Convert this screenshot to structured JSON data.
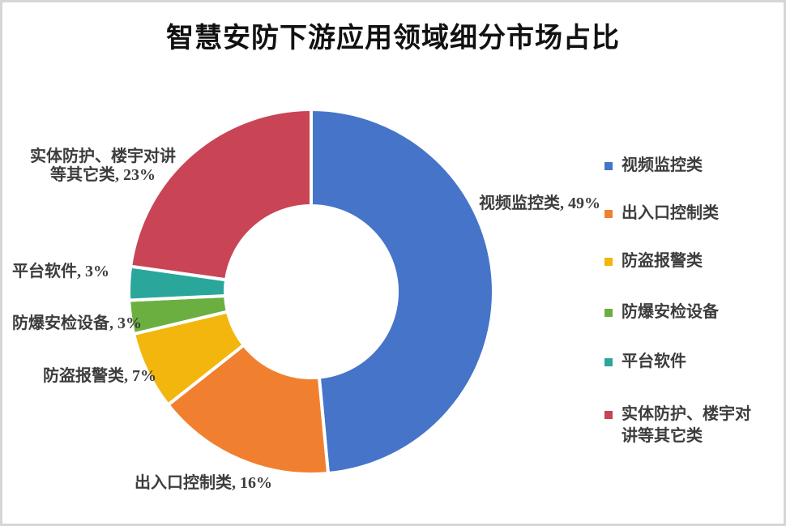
{
  "chart_data": {
    "type": "pie",
    "subtype": "doughnut",
    "title": "智慧安防下游应用领域细分市场占比",
    "categories": [
      "视频监控类",
      "出入口控制类",
      "防盗报警类",
      "防爆安检设备",
      "平台软件",
      "实体防护、楼宇对讲等其它类"
    ],
    "values": [
      49,
      16,
      7,
      3,
      3,
      23
    ],
    "unit": "%",
    "colors": [
      "#4674C8",
      "#F08030",
      "#F2B60D",
      "#6CAF41",
      "#2AA69B",
      "#C94454"
    ],
    "start_angle_deg": 0,
    "clockwise": true,
    "donut_hole_ratio": 0.47,
    "legend_position": "right",
    "data_labels": [
      {
        "lines": [
          "视频监控类, 49%"
        ]
      },
      {
        "lines": [
          "出入口控制类, 16%"
        ]
      },
      {
        "lines": [
          "防盗报警类, 7%"
        ]
      },
      {
        "lines": [
          "防爆安检设备, 3%"
        ]
      },
      {
        "lines": [
          "平台软件, 3%"
        ]
      },
      {
        "lines": [
          "实体防护、楼宇对讲",
          "等其它类, 23%"
        ]
      }
    ],
    "legend_labels": [
      "视频监控类",
      "出入口控制类",
      "防盗报警类",
      "防爆安检设备",
      "平台软件",
      "实体防护、楼宇对讲等其它类"
    ]
  },
  "style": {
    "background": "#FFFFFF",
    "border_color": "#D6D6D6",
    "label_color": "#3D3D3D",
    "title_color": "#111111",
    "slice_gap_color": "#FFFFFF"
  }
}
